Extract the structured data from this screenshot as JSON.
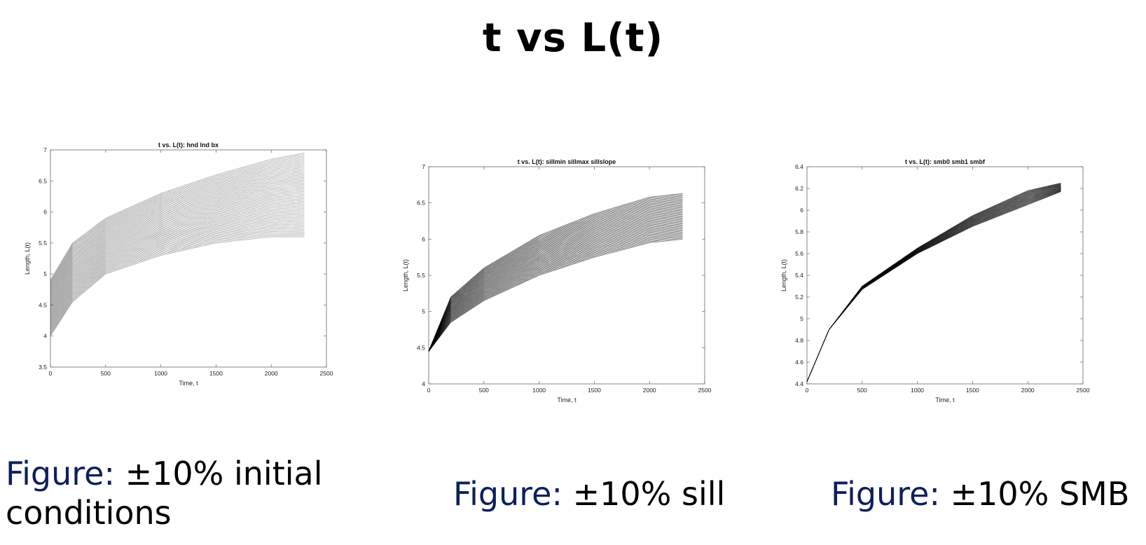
{
  "slide": {
    "title": "t vs L(t)"
  },
  "captions": [
    {
      "lead": "Figure:",
      "text": " ±10% initial conditions"
    },
    {
      "lead": "Figure:",
      "text": " ±10% sill"
    },
    {
      "lead": "Figure:",
      "text": " ±10% SMB"
    }
  ],
  "chart_data": [
    {
      "type": "line",
      "title": "t vs. L(t): hnd lnd bx",
      "xlabel": "Time, t",
      "ylabel": "Length, L(t)",
      "xlim": [
        0,
        2500
      ],
      "ylim": [
        3.5,
        7
      ],
      "xticks": [
        0,
        500,
        1000,
        1500,
        2000,
        2500
      ],
      "yticks": [
        3.5,
        4,
        4.5,
        5,
        5.5,
        6,
        6.5,
        7
      ],
      "grid": false,
      "legend": "none",
      "line_color": "#000000",
      "series_count": 60,
      "series_range": [
        {
          "name": "",
          "values": [
            [
              0,
              4.0
            ],
            [
              200,
              4.55
            ],
            [
              500,
              5.0
            ],
            [
              1000,
              5.3
            ],
            [
              1500,
              5.5
            ],
            [
              2000,
              5.6
            ],
            [
              2300,
              5.6
            ]
          ]
        },
        {
          "name": "",
          "values": [
            [
              0,
              4.9
            ],
            [
              200,
              5.5
            ],
            [
              500,
              5.9
            ],
            [
              1000,
              6.3
            ],
            [
              1500,
              6.6
            ],
            [
              2000,
              6.85
            ],
            [
              2300,
              6.95
            ]
          ]
        }
      ]
    },
    {
      "type": "line",
      "title": "t vs. L(t): sillmin sillmax sillslope",
      "xlabel": "Time, t",
      "ylabel": "Length, L(t)",
      "xlim": [
        0,
        2500
      ],
      "ylim": [
        4,
        7
      ],
      "xticks": [
        0,
        500,
        1000,
        1500,
        2000,
        2500
      ],
      "yticks": [
        4,
        4.5,
        5,
        5.5,
        6,
        6.5,
        7
      ],
      "grid": false,
      "legend": "none",
      "line_color": "#000000",
      "series_count": 40,
      "series_range": [
        {
          "name": "",
          "values": [
            [
              0,
              4.45
            ],
            [
              200,
              4.85
            ],
            [
              500,
              5.15
            ],
            [
              1000,
              5.5
            ],
            [
              1500,
              5.75
            ],
            [
              2000,
              5.95
            ],
            [
              2300,
              6.0
            ]
          ]
        },
        {
          "name": "",
          "values": [
            [
              0,
              4.45
            ],
            [
              200,
              5.2
            ],
            [
              500,
              5.6
            ],
            [
              1000,
              6.05
            ],
            [
              1500,
              6.35
            ],
            [
              2000,
              6.58
            ],
            [
              2300,
              6.63
            ]
          ]
        }
      ]
    },
    {
      "type": "line",
      "title": "t vs. L(t): smb0 smb1 smbf",
      "xlabel": "Time, t",
      "ylabel": "Length, L(t)",
      "xlim": [
        0,
        2500
      ],
      "ylim": [
        4.4,
        6.4
      ],
      "xticks": [
        0,
        500,
        1000,
        1500,
        2000,
        2500
      ],
      "yticks": [
        4.4,
        4.6,
        4.8,
        5,
        5.2,
        5.4,
        5.6,
        5.8,
        6,
        6.2,
        6.4
      ],
      "grid": false,
      "legend": "none",
      "line_color": "#000000",
      "series_count": 25,
      "series_range": [
        {
          "name": "",
          "values": [
            [
              0,
              4.42
            ],
            [
              200,
              4.9
            ],
            [
              500,
              5.27
            ],
            [
              1000,
              5.6
            ],
            [
              1500,
              5.85
            ],
            [
              2000,
              6.05
            ],
            [
              2300,
              6.17
            ]
          ]
        },
        {
          "name": "",
          "values": [
            [
              0,
              4.42
            ],
            [
              200,
              4.9
            ],
            [
              500,
              5.3
            ],
            [
              1000,
              5.65
            ],
            [
              1500,
              5.95
            ],
            [
              2000,
              6.18
            ],
            [
              2300,
              6.25
            ]
          ]
        }
      ]
    }
  ]
}
